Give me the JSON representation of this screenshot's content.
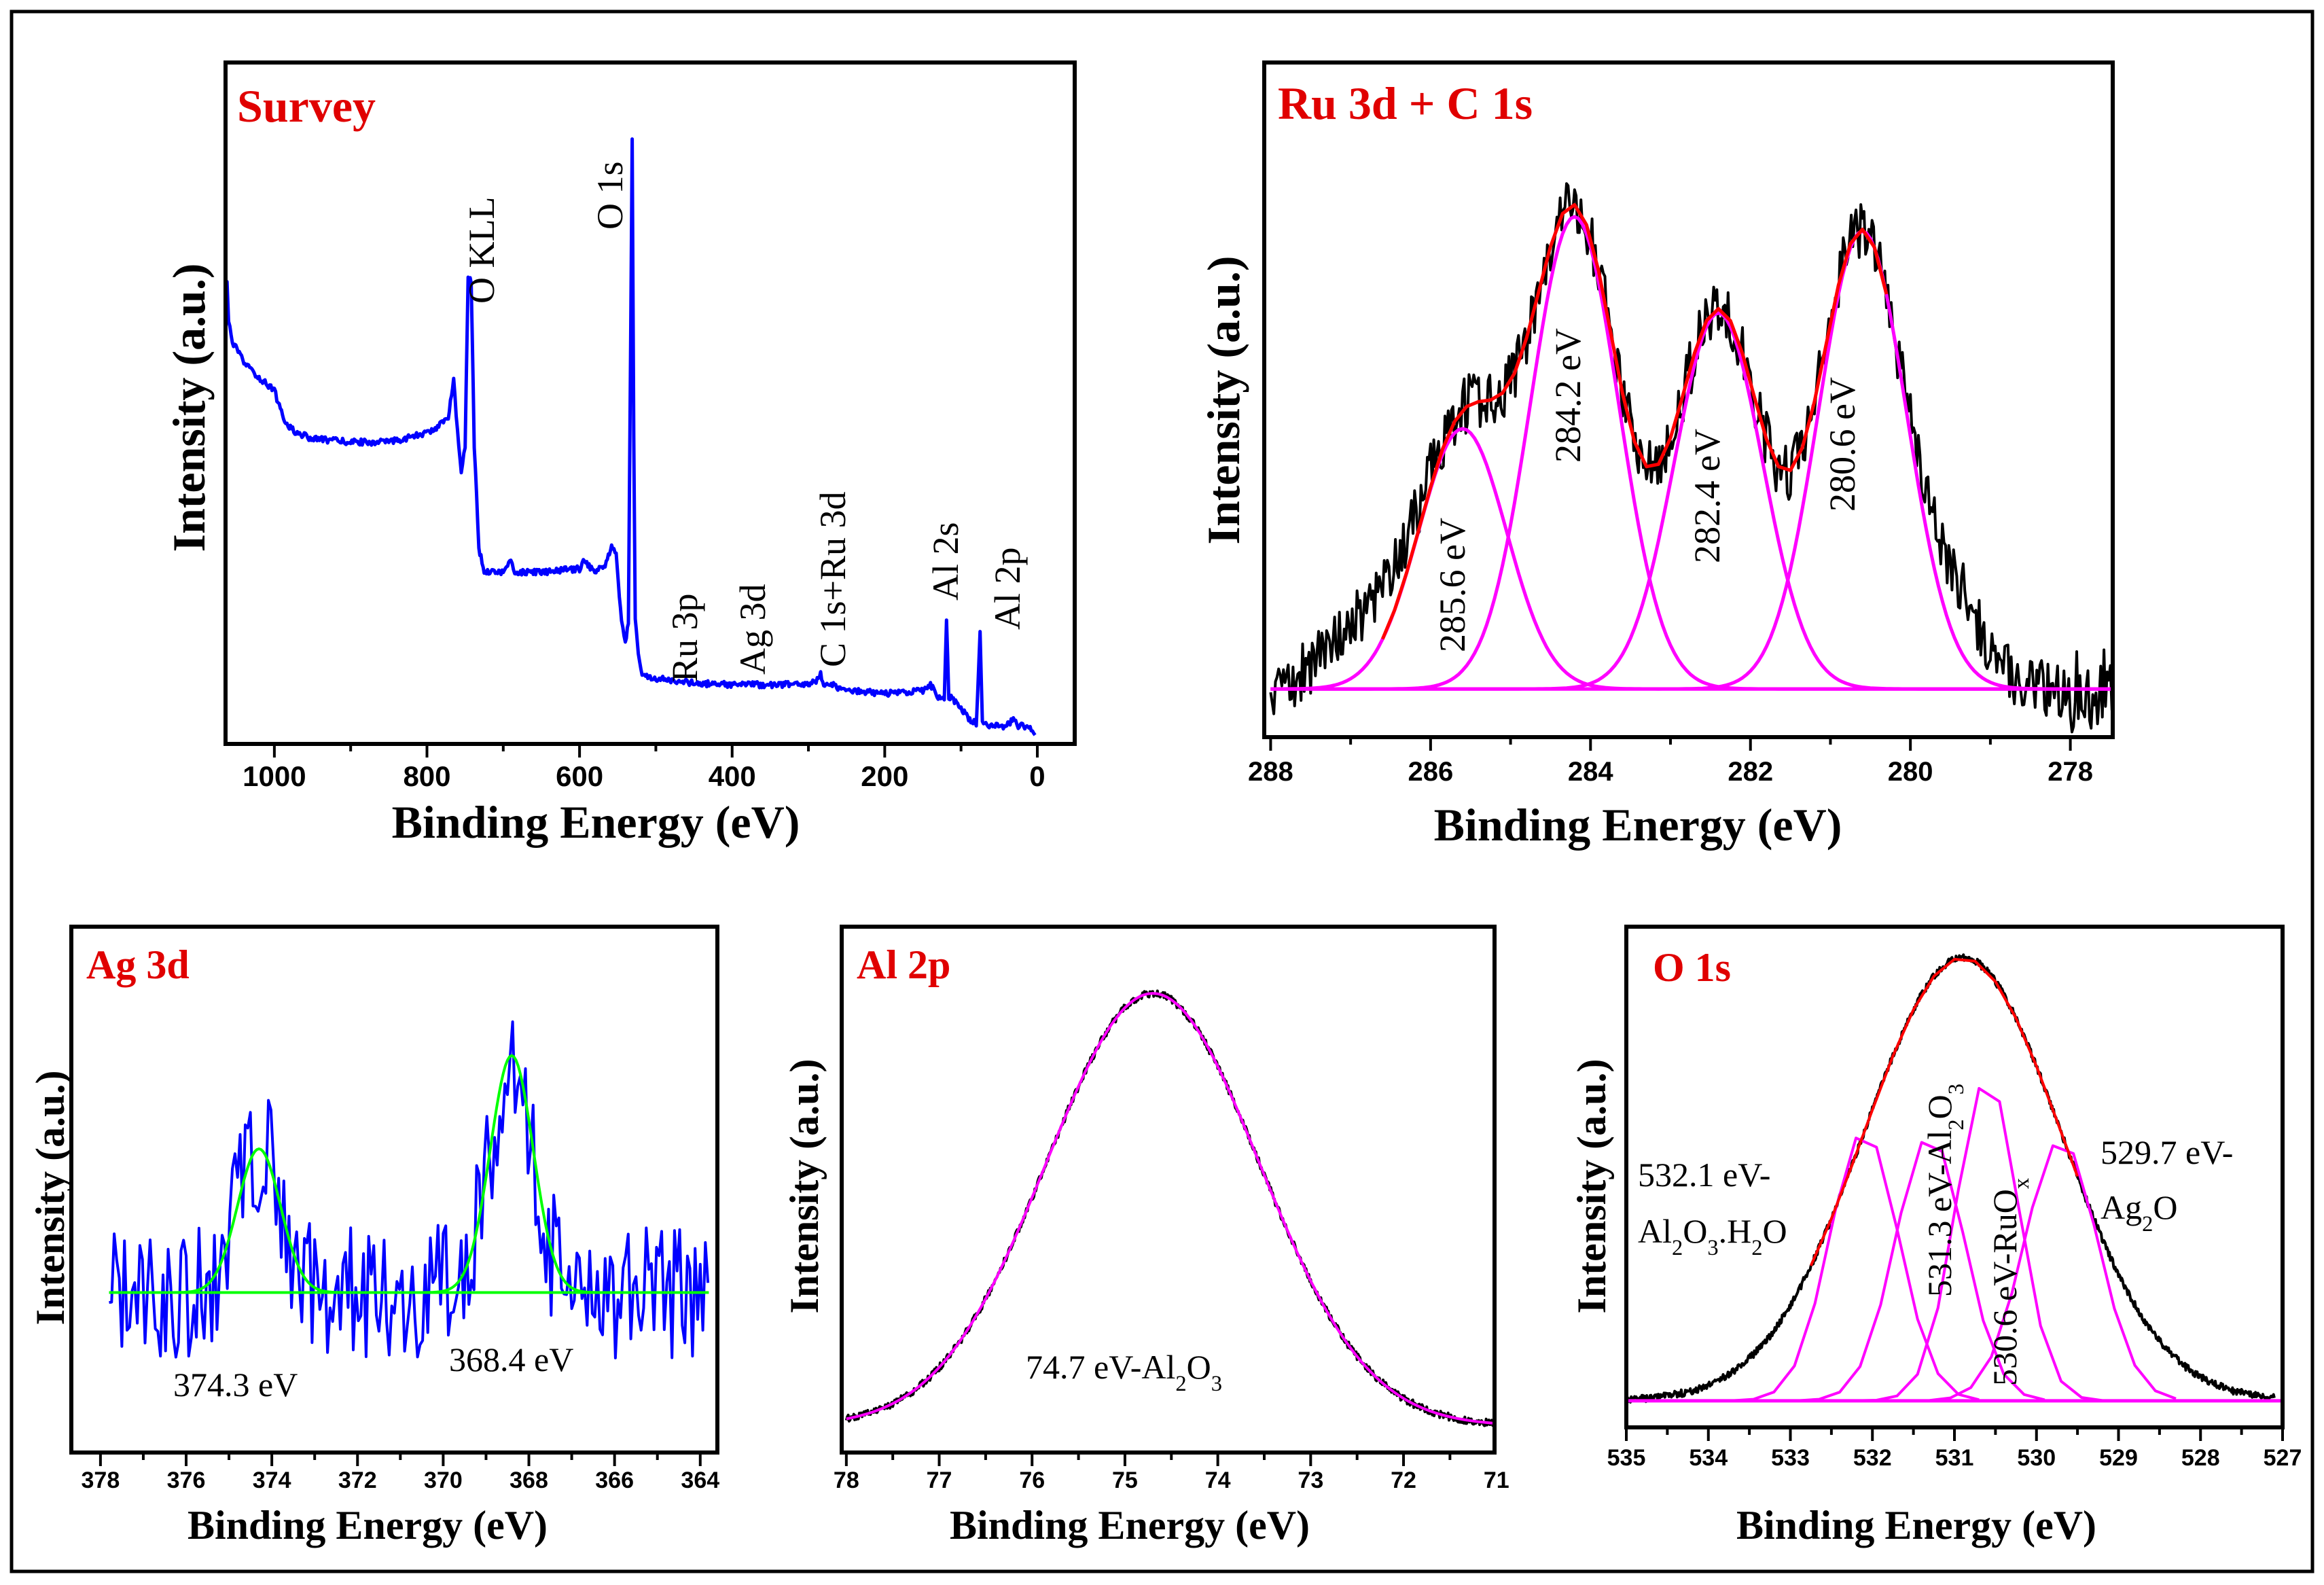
{
  "figure": {
    "panels": [
      "survey",
      "ru",
      "ag",
      "al",
      "o"
    ]
  },
  "chart_data": [
    {
      "id": "survey",
      "type": "line",
      "title": "Survey",
      "xlabel": "Binding Energy (eV)",
      "ylabel": "Intensity (a.u.)",
      "xlim": [
        1064,
        -49
      ],
      "ylim": [
        0,
        100
      ],
      "xticks": [
        1000,
        800,
        600,
        400,
        200,
        0
      ],
      "xticklabels": [
        "1000",
        "800",
        "600",
        "400",
        "200",
        "0"
      ],
      "xminor": 100,
      "series": [
        {
          "name": "survey",
          "color": "#0000ff",
          "points": [
            [
              1064,
              60
            ],
            [
              1062,
              68
            ],
            [
              1060,
              62
            ],
            [
              1055,
              59
            ],
            [
              1040,
              56
            ],
            [
              1020,
              53.7
            ],
            [
              1000,
              52
            ],
            [
              995,
              50
            ],
            [
              985,
              47
            ],
            [
              970,
              45.6
            ],
            [
              950,
              44.8
            ],
            [
              900,
              44.3
            ],
            [
              850,
              44.3
            ],
            [
              800,
              45.6
            ],
            [
              780,
              47
            ],
            [
              772,
              48
            ],
            [
              765,
              53.7
            ],
            [
              760,
              46
            ],
            [
              755,
              39.6
            ],
            [
              750,
              43.9
            ],
            [
              746,
              68.9
            ],
            [
              742,
              68
            ],
            [
              738,
              43.9
            ],
            [
              732,
              28.7
            ],
            [
              725,
              25.4
            ],
            [
              700,
              25.2
            ],
            [
              690,
              26.8
            ],
            [
              685,
              25.2
            ],
            [
              650,
              25.2
            ],
            [
              600,
              25.7
            ],
            [
              595,
              26.8
            ],
            [
              580,
              25.4
            ],
            [
              565,
              26.5
            ],
            [
              558,
              29.1
            ],
            [
              552,
              27.6
            ],
            [
              545,
              17.8
            ],
            [
              540,
              14.6
            ],
            [
              536,
              18
            ],
            [
              533,
              60
            ],
            [
              531,
              88.5
            ],
            [
              529,
              45
            ],
            [
              527,
              18
            ],
            [
              523,
              13.5
            ],
            [
              518,
              10.2
            ],
            [
              500,
              9.6
            ],
            [
              450,
              8.9
            ],
            [
              400,
              8.7
            ],
            [
              300,
              8.7
            ],
            [
              290,
              9.1
            ],
            [
              284,
              10.2
            ],
            [
              280,
              8.9
            ],
            [
              270,
              8.9
            ],
            [
              260,
              8
            ],
            [
              200,
              7.4
            ],
            [
              150,
              7.8
            ],
            [
              140,
              8.7
            ],
            [
              130,
              7
            ],
            [
              122,
              6.6
            ],
            [
              119,
              17.8
            ],
            [
              116,
              7
            ],
            [
              110,
              6.5
            ],
            [
              100,
              5.2
            ],
            [
              90,
              3.7
            ],
            [
              80,
              3
            ],
            [
              75,
              16.1
            ],
            [
              72,
              3.3
            ],
            [
              60,
              2.6
            ],
            [
              40,
              2.6
            ],
            [
              30,
              3.9
            ],
            [
              25,
              2.6
            ],
            [
              15,
              2.6
            ],
            [
              8,
              2
            ],
            [
              3,
              1.3
            ]
          ]
        }
      ],
      "annotations": [
        {
          "segments": [
            {
              "t": "O KLL"
            }
          ]
        },
        {
          "segments": [
            {
              "t": "O 1s"
            }
          ]
        },
        {
          "segments": [
            {
              "t": "Ru 3p"
            }
          ]
        },
        {
          "segments": [
            {
              "t": "Ag 3d"
            }
          ]
        },
        {
          "segments": [
            {
              "t": "C 1s+Ru 3d"
            }
          ]
        },
        {
          "segments": [
            {
              "t": "Al 2s"
            }
          ]
        },
        {
          "segments": [
            {
              "t": "Al 2p"
            }
          ]
        }
      ]
    },
    {
      "id": "ru",
      "type": "line",
      "title": "Ru 3d + C 1s",
      "xlabel": "Binding Energy (eV)",
      "ylabel": "Intensity (a.u.)",
      "xlim": [
        288.08,
        277.47
      ],
      "ylim": [
        -10,
        130
      ],
      "xticks": [
        288,
        286,
        284,
        282,
        280,
        278
      ],
      "xticklabels": [
        "288",
        "286",
        "284",
        "282",
        "280",
        "278"
      ],
      "xminor": 1,
      "raw": {
        "color": "#000000",
        "range": [
          288,
          277.1
        ]
      },
      "envelope": {
        "color": "#ff0000",
        "range": [
          286.6,
          280.2
        ]
      },
      "components": {
        "color": "#ff00ff",
        "peaks": [
          {
            "center": 285.6,
            "amplitude": 54,
            "sigma": 0.55
          },
          {
            "center": 284.2,
            "amplitude": 98,
            "sigma": 0.55
          },
          {
            "center": 282.4,
            "amplitude": 78,
            "sigma": 0.55
          },
          {
            "center": 280.6,
            "amplitude": 95,
            "sigma": 0.55
          }
        ]
      },
      "annotations": [
        {
          "segments": [
            {
              "t": "285.6 eV"
            }
          ]
        },
        {
          "segments": [
            {
              "t": "284.2 eV"
            }
          ]
        },
        {
          "segments": [
            {
              "t": "282.4  eV"
            }
          ]
        },
        {
          "segments": [
            {
              "t": "280.6  eV"
            }
          ]
        }
      ]
    },
    {
      "id": "ag",
      "type": "line",
      "title": "Ag 3d",
      "xlabel": "Binding Energy (eV)",
      "ylabel": "Intensity (a.u.)",
      "xlim": [
        378.68,
        363.6
      ],
      "ylim": [
        -108,
        247
      ],
      "xticks": [
        378,
        376,
        374,
        372,
        370,
        368,
        366,
        364
      ],
      "xticklabels": [
        "378",
        "376",
        "374",
        "372",
        "370",
        "368",
        "366",
        "364"
      ],
      "xminor": 1,
      "raw": {
        "color": "#0000ff",
        "range": [
          377.8,
          363.8
        ]
      },
      "fit": {
        "color": "#00ff00",
        "range": [
          377.8,
          363.8
        ],
        "peaks": [
          {
            "center": 374.3,
            "amplitude": 97,
            "sigma": 0.5
          },
          {
            "center": 368.4,
            "amplitude": 160,
            "sigma": 0.5
          }
        ]
      },
      "annotations": [
        {
          "segments": [
            {
              "t": "374.3 eV"
            }
          ]
        },
        {
          "segments": [
            {
              "t": "368.4 eV"
            }
          ]
        }
      ]
    },
    {
      "id": "al",
      "type": "line",
      "title": "Al 2p",
      "xlabel": "Binding Energy (eV)",
      "ylabel": "Intensity (a.u.)",
      "xlim": [
        78.05,
        71.02
      ],
      "ylim": [
        -18,
        337
      ],
      "xticks": [
        78,
        77,
        76,
        75,
        74,
        73,
        72,
        71
      ],
      "xticklabels": [
        "78",
        "77",
        "76",
        "75",
        "74",
        "73",
        "72",
        "71"
      ],
      "xminor": 0.5,
      "raw": {
        "color": "#000000",
        "range": [
          78,
          71
        ]
      },
      "components": {
        "color": "#ff00ff",
        "peaks": [
          {
            "center": 74.7,
            "amplitude": 292,
            "sigma": 1.15
          }
        ]
      },
      "annotations": [
        {
          "segments": [
            {
              "t": "74.7 eV-Al"
            },
            {
              "t": "2",
              "sub": true
            },
            {
              "t": "O"
            },
            {
              "t": "3",
              "sub": true
            }
          ]
        }
      ]
    },
    {
      "id": "o",
      "type": "line",
      "title": "O 1s",
      "xlabel": "Binding Energy (eV)",
      "ylabel": "Intensity (a.u.)",
      "xlim": [
        535,
        527
      ],
      "ylim": [
        -6,
        107
      ],
      "xticks": [
        535,
        534,
        533,
        532,
        531,
        530,
        529,
        528,
        527
      ],
      "xticklabels": [
        "535",
        "534",
        "533",
        "532",
        "531",
        "530",
        "529",
        "528",
        "527"
      ],
      "xminor": 0.5,
      "raw": {
        "color": "#000000",
        "range": [
          535,
          527.1
        ],
        "center": 530.9,
        "amplitude": 100,
        "sigma": 1.2
      },
      "envelope": {
        "color": "#ff0000",
        "range": [
          532.75,
          529.3
        ]
      },
      "components": {
        "color": "#ff00ff",
        "peaks": [
          {
            "center": 532.1,
            "amplitude": 61,
            "sigma": 0.42
          },
          {
            "center": 531.3,
            "amplitude": 60,
            "sigma": 0.42
          },
          {
            "center": 530.6,
            "amplitude": 73,
            "sigma": 0.38
          },
          {
            "center": 529.7,
            "amplitude": 59,
            "sigma": 0.45
          }
        ]
      },
      "annotations": [
        {
          "segments": [
            {
              "t": "532.1 eV-"
            }
          ]
        },
        {
          "segments": [
            {
              "t": "Al"
            },
            {
              "t": "2",
              "sub": true
            },
            {
              "t": "O"
            },
            {
              "t": "3",
              "sub": true
            },
            {
              "t": ".H"
            },
            {
              "t": "2",
              "sub": true
            },
            {
              "t": "O"
            }
          ]
        },
        {
          "segments": [
            {
              "t": "531.3 eV-Al"
            },
            {
              "t": "2",
              "sub": true
            },
            {
              "t": "O"
            },
            {
              "t": "3",
              "sub": true
            }
          ]
        },
        {
          "segments": [
            {
              "t": "530.6 eV-RuO"
            },
            {
              "t": "x",
              "sub": true
            }
          ]
        },
        {
          "segments": [
            {
              "t": "529.7 eV-"
            }
          ]
        },
        {
          "segments": [
            {
              "t": "Ag"
            },
            {
              "t": "2",
              "sub": true
            },
            {
              "t": "O"
            }
          ]
        }
      ]
    }
  ]
}
